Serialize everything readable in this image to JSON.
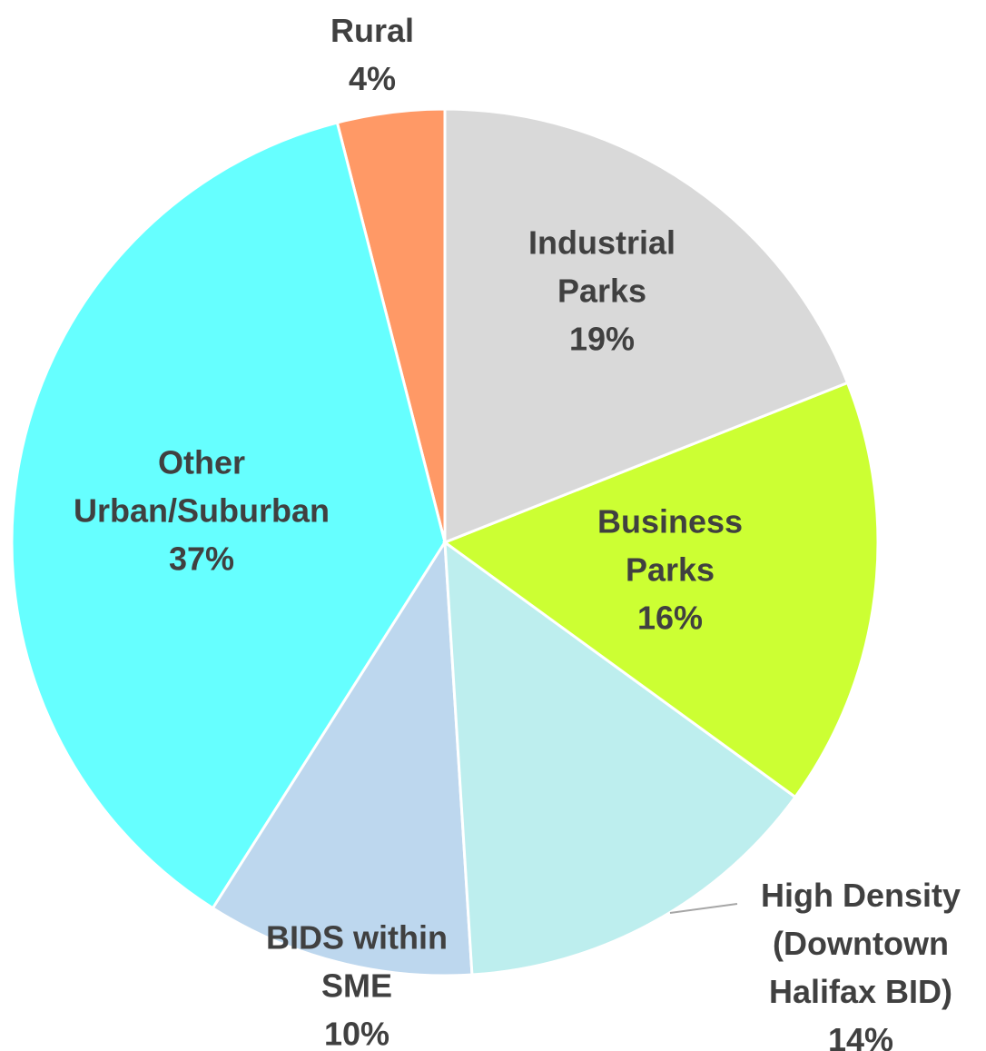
{
  "chart_data": {
    "type": "pie",
    "categories": [
      "Industrial\nParks",
      "Business\nParks",
      "High Density\n(Downtown\nHalifax BID)",
      "BIDS within\nSME",
      "Other\nUrban/Suburban",
      "Rural"
    ],
    "values": [
      19,
      16,
      14,
      10,
      37,
      4
    ],
    "value_labels": [
      "19%",
      "16%",
      "14%",
      "10%",
      "37%",
      "4%"
    ],
    "colors": [
      "#d9d9d9",
      "#ccff33",
      "#bdeeee",
      "#bdd7ee",
      "#66ffff",
      "#ff9966"
    ]
  }
}
